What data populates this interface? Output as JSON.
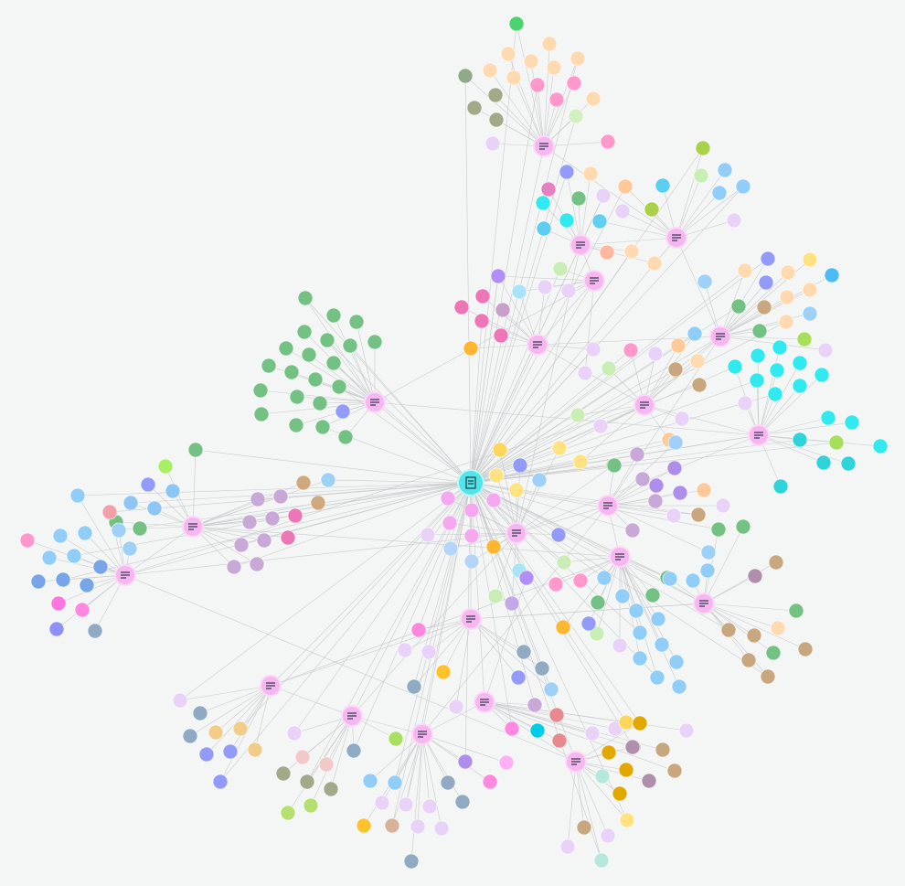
{
  "graph": {
    "background": "#f4f5f5",
    "edge_color": "#c2c4c6",
    "hub_color": "#f6b6f0",
    "root_color": "#53e4e9",
    "node_radius": 8,
    "hub_radius": 10,
    "root_node": "root",
    "hubs": [
      {
        "id": "root",
        "type": "document-icon"
      },
      {
        "id": "h1",
        "type": "list-icon"
      },
      {
        "id": "h2",
        "type": "list-icon"
      },
      {
        "id": "h3",
        "type": "list-icon"
      },
      {
        "id": "h4",
        "type": "list-icon"
      },
      {
        "id": "h5",
        "type": "list-icon"
      },
      {
        "id": "h6",
        "type": "list-icon"
      },
      {
        "id": "h7",
        "type": "list-icon"
      },
      {
        "id": "h8",
        "type": "list-icon"
      },
      {
        "id": "h9",
        "type": "list-icon"
      },
      {
        "id": "h10",
        "type": "list-icon"
      },
      {
        "id": "h11",
        "type": "list-icon"
      },
      {
        "id": "h12",
        "type": "list-icon"
      },
      {
        "id": "h13",
        "type": "list-icon"
      },
      {
        "id": "h14",
        "type": "list-icon"
      },
      {
        "id": "h15",
        "type": "list-icon"
      },
      {
        "id": "h16",
        "type": "list-icon"
      },
      {
        "id": "h17",
        "type": "list-icon"
      },
      {
        "id": "h18",
        "type": "list-icon"
      },
      {
        "id": "h19",
        "type": "list-icon"
      },
      {
        "id": "h20",
        "type": "list-icon"
      },
      {
        "id": "h21",
        "type": "list-icon"
      }
    ],
    "hub_links": [
      [
        "root",
        "h1"
      ],
      [
        "root",
        "h2"
      ],
      [
        "root",
        "h3"
      ],
      [
        "root",
        "h4"
      ],
      [
        "root",
        "h5"
      ],
      [
        "root",
        "h6"
      ],
      [
        "root",
        "h7"
      ],
      [
        "root",
        "h8"
      ],
      [
        "root",
        "h9"
      ],
      [
        "root",
        "h10"
      ],
      [
        "root",
        "h11"
      ],
      [
        "root",
        "h12"
      ],
      [
        "root",
        "h13"
      ],
      [
        "root",
        "h14"
      ],
      [
        "root",
        "h15"
      ],
      [
        "root",
        "h16"
      ],
      [
        "root",
        "h17"
      ],
      [
        "root",
        "h18"
      ],
      [
        "root",
        "h19"
      ],
      [
        "root",
        "h20"
      ],
      [
        "root",
        "h21"
      ],
      [
        "h1",
        "h2"
      ],
      [
        "h2",
        "h3"
      ],
      [
        "h3",
        "h4"
      ],
      [
        "h4",
        "h7"
      ],
      [
        "h5",
        "h4"
      ],
      [
        "h5",
        "h6"
      ],
      [
        "h6",
        "h8"
      ],
      [
        "h8",
        "h9"
      ],
      [
        "h8",
        "h11"
      ],
      [
        "h9",
        "h10"
      ],
      [
        "h10",
        "h11"
      ],
      [
        "h11",
        "h12"
      ],
      [
        "h12",
        "h13"
      ],
      [
        "h13",
        "h14"
      ],
      [
        "h14",
        "h15"
      ],
      [
        "h15",
        "h16"
      ],
      [
        "h16",
        "h17"
      ],
      [
        "h17",
        "h18"
      ],
      [
        "h18",
        "h19"
      ],
      [
        "h19",
        "h20"
      ],
      [
        "h20",
        "h21"
      ],
      [
        "h21",
        "h11"
      ],
      [
        "h7",
        "h9"
      ],
      [
        "h3",
        "h12"
      ],
      [
        "h2",
        "h6"
      ],
      [
        "h5",
        "h8"
      ],
      [
        "h6",
        "h13"
      ],
      [
        "h9",
        "h12"
      ],
      [
        "h10",
        "h14"
      ],
      [
        "h16",
        "h15"
      ],
      [
        "h19",
        "h13"
      ],
      [
        "h18",
        "h12"
      ],
      [
        "h17",
        "h14"
      ]
    ],
    "clusters": [
      {
        "hub": "h1",
        "colors": [
          "#4bd46e",
          "#ffd9b0",
          "#ffd9b0",
          "#ffd9b0",
          "#ffd9b0",
          "#ffd9b0",
          "#ffd9b0",
          "#ffd9b0",
          "#ff99cc",
          "#ff99cc",
          "#ff99cc",
          "#ff99cc",
          "#8fa98a",
          "#a1a989",
          "#a1a989",
          "#a1a989",
          "#d1f0c0",
          "#e8d2f8",
          "#ffd9b0"
        ]
      },
      {
        "hub": "h2",
        "colors": [
          "#a9d14a",
          "#c9eeb5",
          "#90cdf8",
          "#90cdf8",
          "#90cdf8",
          "#e8d2f8",
          "#5bcdf0",
          "#a9d14a",
          "#ffc998",
          "#e8d2f8",
          "#60cff0"
        ]
      },
      {
        "hub": "h3",
        "colors": [
          "#929bfa",
          "#e87fc2",
          "#ffd9b0",
          "#73c283",
          "#e8d2f8",
          "#5bcdf0",
          "#30eaf0",
          "#30eaf0",
          "#ffd9b0",
          "#ffb7a0",
          "#ffd9b0"
        ]
      },
      {
        "hub": "h4",
        "colors": [
          "#c9eeb5",
          "#e8d2f8",
          "#e8d2f8",
          "#a8e3f8",
          "#ae8eeb",
          "#e8d2f8"
        ]
      },
      {
        "hub": "h5",
        "colors": [
          "#b08ffa",
          "#ee75b6",
          "#ee75b6",
          "#c9a0c9",
          "#ee75b6",
          "#ee75b6",
          "#ffb732",
          "#a8e3f8",
          "#e8d2f8",
          "#e8d2f8"
        ]
      },
      {
        "hub": "h6",
        "colors": [
          "#929bfa",
          "#929bfa",
          "#ffe282",
          "#4dbaf2",
          "#ffd9b0",
          "#ffd9b0",
          "#ffd9b0",
          "#ffd9b0",
          "#ffd9b0",
          "#9ed0f8",
          "#9ed0f8",
          "#c8a77f",
          "#73c283",
          "#a6e05a",
          "#e8d2f8",
          "#73c283",
          "#c8a77f"
        ]
      },
      {
        "hub": "h7",
        "colors": [
          "#73c283",
          "#73c283",
          "#73c283",
          "#73c283",
          "#73c283",
          "#73c283",
          "#73c283",
          "#73c283",
          "#73c283",
          "#73c283",
          "#73c283",
          "#73c283",
          "#73c283",
          "#73c283",
          "#73c283",
          "#73c283",
          "#73c283",
          "#73c283",
          "#929bfa",
          "#73c283",
          "#73c283",
          "#73c283"
        ]
      },
      {
        "hub": "h8",
        "colors": [
          "#ff99cc",
          "#e8d2f8",
          "#c9eeb5",
          "#ffc998",
          "#90cdf8",
          "#c8a77f",
          "#c8a77f",
          "#ffd9b0",
          "#ffc998",
          "#e8d2f8",
          "#c9eeb5",
          "#ffe282",
          "#ffe282",
          "#e8d2f8"
        ]
      },
      {
        "hub": "h9",
        "colors": [
          "#30eaf0",
          "#30eaf0",
          "#30eaf0",
          "#30eaf0",
          "#30eaf0",
          "#30eaf0",
          "#30eaf0",
          "#30eaf0",
          "#30eaf0",
          "#30eaf0",
          "#30eaf0",
          "#30eaf0",
          "#2ed4d9",
          "#2ed4d9",
          "#2ed4d9",
          "#2ed4d9",
          "#a6e05a",
          "#e8d2f8"
        ]
      },
      {
        "hub": "h10",
        "colors": [
          "#73c283",
          "#a9ef62",
          "#929bfa",
          "#8dc6f5",
          "#8dc6f5",
          "#8dc6f5",
          "#73c283",
          "#73c283",
          "#c8a8d6",
          "#c8a8d6",
          "#c8a8d6",
          "#c8a8d6",
          "#c8a8d6",
          "#c8a8d6",
          "#ee75b6",
          "#ee75b6",
          "#c8a8d6",
          "#c8a8d6",
          "#d0a87e",
          "#d0a87e",
          "#9ed0f8"
        ]
      },
      {
        "hub": "h11",
        "colors": [
          "#90cdf8",
          "#90cdf8",
          "#90cdf8",
          "#90cdf8",
          "#90cdf8",
          "#ff99cc",
          "#ff75e0",
          "#78a5e8",
          "#78a5e8",
          "#78a5e8",
          "#78a5e8",
          "#9ed0f8",
          "#9ed0f8",
          "#ff88e0",
          "#8f8ffa",
          "#8faac2",
          "#f2a0a8"
        ]
      },
      {
        "hub": "h12",
        "colors": [
          "#f5a7f0",
          "#f5a7f0",
          "#f5a7f0",
          "#f5a7f0",
          "#f5a7f0",
          "#ffd65c",
          "#ffe282",
          "#ffe282",
          "#ffe282",
          "#9ed0f8",
          "#929bfa",
          "#929bfa",
          "#73c283",
          "#b5d5f8",
          "#b5d5f8",
          "#c9eeb5",
          "#ffb732",
          "#a8e3f8",
          "#c3a8e8",
          "#e8d2f8"
        ]
      },
      {
        "hub": "h13",
        "colors": [
          "#73c283",
          "#c8a8d6",
          "#c8a8d6",
          "#c8a8d6",
          "#c8a8d6",
          "#ae8eeb",
          "#ae8eeb",
          "#ae8eeb",
          "#9ed0f8",
          "#9ed0f8",
          "#ffc998",
          "#e8d2f8",
          "#c8a77f",
          "#929bfa",
          "#e8d2f8"
        ]
      },
      {
        "hub": "h14",
        "colors": [
          "#90cdf8",
          "#90cdf8",
          "#90cdf8",
          "#90cdf8",
          "#90cdf8",
          "#90cdf8",
          "#90cdf8",
          "#90cdf8",
          "#90cdf8",
          "#90cdf8",
          "#73c283",
          "#73c283",
          "#73c283",
          "#e8d2f8",
          "#ff99cc",
          "#ff99cc",
          "#c9eeb5",
          "#c9eeb5",
          "#929bfa",
          "#ffb732"
        ]
      },
      {
        "hub": "h15",
        "colors": [
          "#73c283",
          "#73c283",
          "#73c283",
          "#73c283",
          "#c8a77f",
          "#c8a77f",
          "#c8a77f",
          "#c8a77f",
          "#c8a77f",
          "#ffd9b0",
          "#b08fad",
          "#c8a77f",
          "#90cdf8",
          "#90cdf8",
          "#90cdf8"
        ]
      },
      {
        "hub": "h16",
        "colors": [
          "#ff88dd",
          "#e8d2f8",
          "#e8d2f8",
          "#ffc22c",
          "#8faac2",
          "#8faac2",
          "#8faac2",
          "#929bfa",
          "#9ed0f8",
          "#e8d2f8"
        ]
      },
      {
        "hub": "h17",
        "colors": [
          "#e8d2f8",
          "#8fa9c5",
          "#8fa9c5",
          "#f2cd8a",
          "#f2cd8a",
          "#929bfa",
          "#929bfa",
          "#f2cd8a",
          "#929bfa"
        ]
      },
      {
        "hub": "h18",
        "colors": [
          "#e8d2f8",
          "#f2c8c8",
          "#f2c8c8",
          "#a1a989",
          "#a1a989",
          "#a1a989",
          "#b5e070",
          "#b5e070",
          "#8faac2",
          "#a8e060"
        ]
      },
      {
        "hub": "h19",
        "colors": [
          "#ae8eeb",
          "#ff88e0",
          "#ffb0f5",
          "#90cdf8",
          "#90cdf8",
          "#8faac2",
          "#8faac2",
          "#e8d2f8",
          "#e8d2f8",
          "#e8d2f8",
          "#e8d2f8",
          "#e8d2f8",
          "#d7b199",
          "#ffc22c",
          "#8faac2"
        ]
      },
      {
        "hub": "h20",
        "colors": [
          "#c8a8d6",
          "#e8888f",
          "#e8888f",
          "#02cde8",
          "#ff88e0",
          "#b08ffa",
          "#e8d2f8",
          "#e8d2f8",
          "#b08fad",
          "#c8a77f",
          "#c8a77f",
          "#e8d2f8",
          "#ffd65c"
        ]
      },
      {
        "hub": "h21",
        "colors": [
          "#e2a800",
          "#e2a800",
          "#e2a800",
          "#e2a800",
          "#ffe282",
          "#b08fad",
          "#b08fad",
          "#b5e8dc",
          "#b5e8dc",
          "#e8d2f8",
          "#e8d2f8",
          "#c8a77f"
        ]
      }
    ]
  }
}
